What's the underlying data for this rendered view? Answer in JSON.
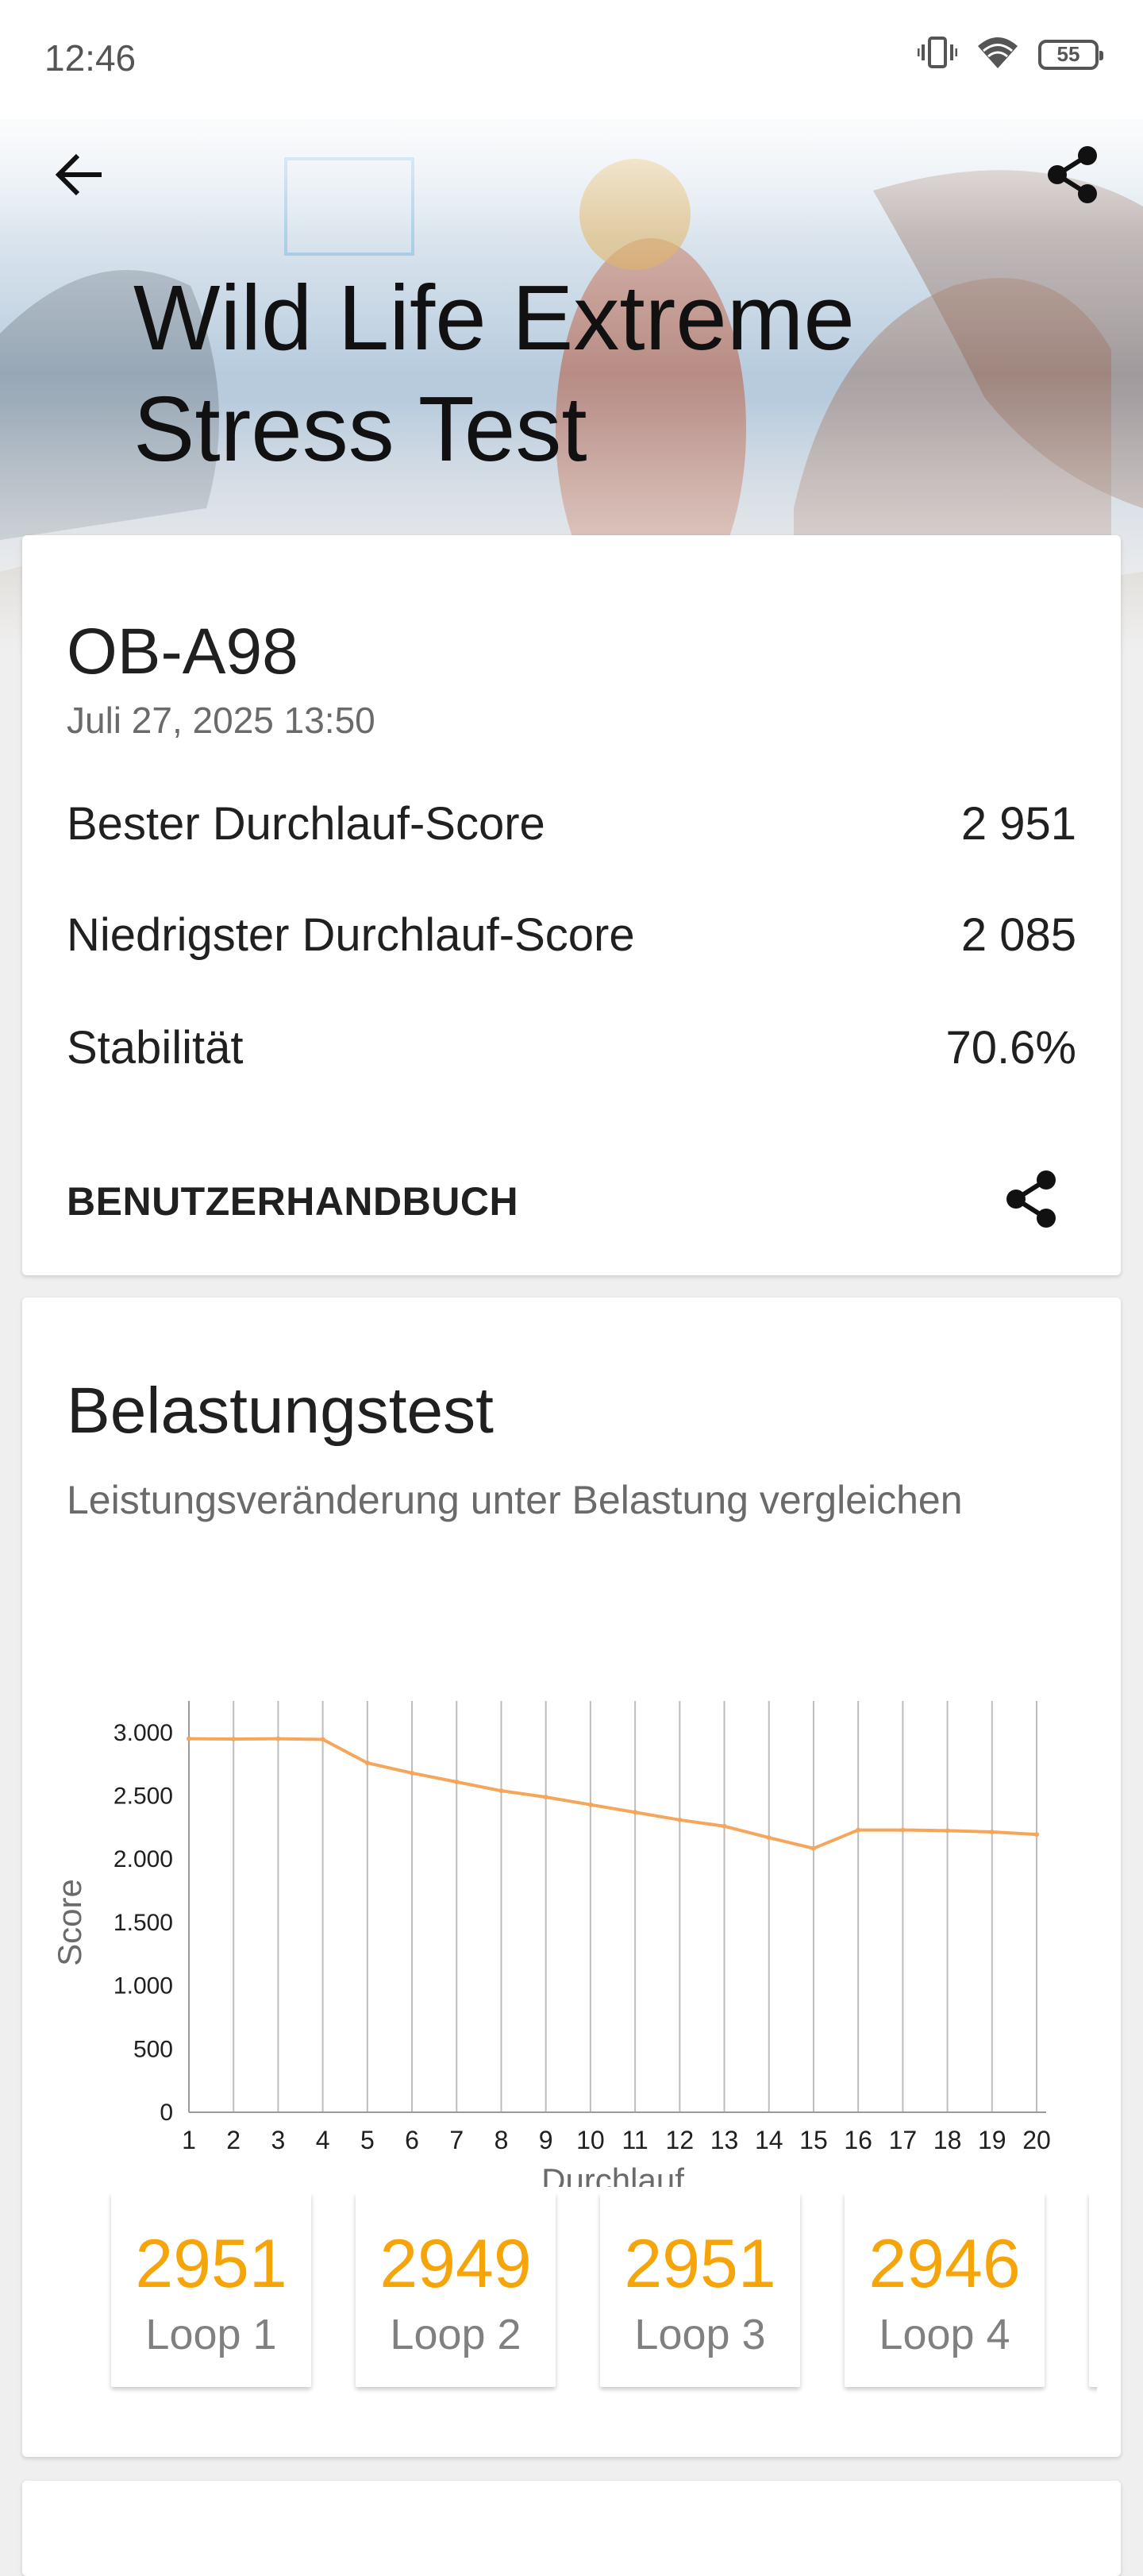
{
  "status_bar": {
    "time": "12:46",
    "battery": "55"
  },
  "header": {
    "title_line1": "Wild Life Extreme",
    "title_line2": "Stress Test"
  },
  "summary": {
    "device": "OB-A98",
    "date": "Juli 27, 2025 13:50",
    "rows": [
      {
        "label": "Bester Durchlauf-Score",
        "value": "2 951"
      },
      {
        "label": "Niedrigster Durchlauf-Score",
        "value": "2 085"
      },
      {
        "label": "Stabilität",
        "value": "70.6%"
      }
    ],
    "manual_label": "BENUTZERHANDBUCH"
  },
  "stress": {
    "title": "Belastungstest",
    "subtitle": "Leistungsveränderung unter Belastung vergleichen"
  },
  "chart_data": {
    "type": "line",
    "xlabel": "Durchlauf",
    "ylabel": "Score",
    "x": [
      1,
      2,
      3,
      4,
      5,
      6,
      7,
      8,
      9,
      10,
      11,
      12,
      13,
      14,
      15,
      16,
      17,
      18,
      19,
      20
    ],
    "values": [
      2951,
      2949,
      2951,
      2946,
      2760,
      2680,
      2610,
      2540,
      2490,
      2430,
      2370,
      2310,
      2260,
      2170,
      2085,
      2230,
      2230,
      2225,
      2215,
      2195
    ],
    "ylim": [
      0,
      3250
    ],
    "yticks": [
      0,
      500,
      1000,
      1500,
      2000,
      2500,
      3000
    ],
    "ytick_labels": [
      "0",
      "500",
      "1.000",
      "1.500",
      "2.000",
      "2.500",
      "3.000"
    ],
    "xtick_labels": [
      "1",
      "2",
      "3",
      "4",
      "5",
      "6",
      "7",
      "8",
      "9",
      "10",
      "11",
      "12",
      "13",
      "14",
      "15",
      "16",
      "17",
      "18",
      "19",
      "20"
    ],
    "grid": "vertical",
    "color": "#f5a65b"
  },
  "loops": [
    {
      "value": "2951",
      "label": "Loop 1"
    },
    {
      "value": "2949",
      "label": "Loop 2"
    },
    {
      "value": "2951",
      "label": "Loop 3"
    },
    {
      "value": "2946",
      "label": "Loop 4"
    }
  ],
  "colors": {
    "accent": "#f5a50a",
    "line": "#f5a65b"
  }
}
